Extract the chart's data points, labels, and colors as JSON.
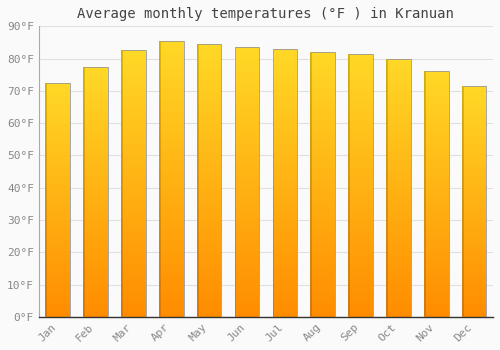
{
  "months": [
    "Jan",
    "Feb",
    "Mar",
    "Apr",
    "May",
    "Jun",
    "Jul",
    "Aug",
    "Sep",
    "Oct",
    "Nov",
    "Dec"
  ],
  "values": [
    72.5,
    77.5,
    82.5,
    85.5,
    84.5,
    83.5,
    83.0,
    82.0,
    81.5,
    80.0,
    76.0,
    71.5
  ],
  "bar_color_main": "#FFA726",
  "bar_color_top": "#FFD54F",
  "bar_color_bottom": "#FF8C00",
  "bar_edge_color": "#B8860B",
  "background_color": "#FAFAFA",
  "plot_bg_color": "#FAFAFA",
  "title": "Average monthly temperatures (°F ) in Kranuan",
  "ylabel_ticks": [
    "0°F",
    "10°F",
    "20°F",
    "30°F",
    "40°F",
    "50°F",
    "60°F",
    "70°F",
    "80°F",
    "90°F"
  ],
  "ytick_vals": [
    0,
    10,
    20,
    30,
    40,
    50,
    60,
    70,
    80,
    90
  ],
  "ylim": [
    0,
    90
  ],
  "title_fontsize": 10,
  "tick_fontsize": 8,
  "grid_color": "#E0E0E0",
  "title_color": "#444444",
  "tick_color": "#888888",
  "bar_width": 0.65
}
